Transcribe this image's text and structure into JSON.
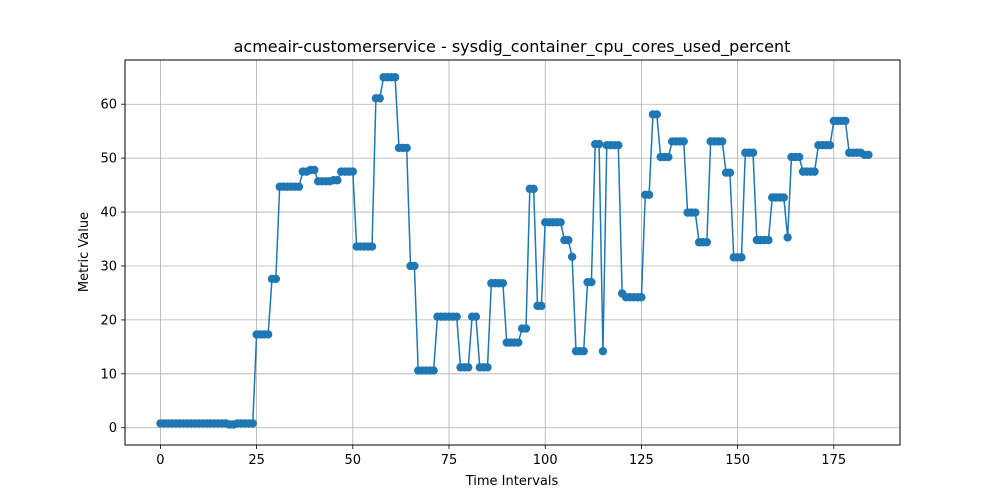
{
  "chart_data": {
    "type": "line",
    "title": "acmeair-customerservice - sysdig_container_cpu_cores_used_percent",
    "xlabel": "Time Intervals",
    "ylabel": "Metric Value",
    "xlim": [
      -9.2,
      192.2
    ],
    "ylim": [
      -3.2,
      68.2
    ],
    "xticks": [
      0,
      25,
      50,
      75,
      100,
      125,
      150,
      175
    ],
    "yticks": [
      0,
      10,
      20,
      30,
      40,
      50,
      60
    ],
    "grid": true,
    "line_color": "#1f77b4",
    "series": [
      {
        "values": [
          0.8,
          0.8,
          0.8,
          0.8,
          0.8,
          0.8,
          0.8,
          0.8,
          0.8,
          0.8,
          0.8,
          0.8,
          0.8,
          0.8,
          0.8,
          0.8,
          0.8,
          0.8,
          0.6,
          0.6,
          0.8,
          0.8,
          0.8,
          0.8,
          0.8,
          17.3,
          17.3,
          17.3,
          17.3,
          27.6,
          27.6,
          44.7,
          44.7,
          44.7,
          44.7,
          44.7,
          44.7,
          47.5,
          47.5,
          47.8,
          47.8,
          45.7,
          45.7,
          45.7,
          45.7,
          45.9,
          45.9,
          47.5,
          47.5,
          47.5,
          47.5,
          33.6,
          33.6,
          33.6,
          33.6,
          33.6,
          61.1,
          61.1,
          65.0,
          65.0,
          65.0,
          65.0,
          51.9,
          51.9,
          51.9,
          30.0,
          30.0,
          10.6,
          10.6,
          10.6,
          10.6,
          10.6,
          20.6,
          20.6,
          20.6,
          20.6,
          20.6,
          20.6,
          11.2,
          11.2,
          11.2,
          20.6,
          20.6,
          11.2,
          11.2,
          11.2,
          26.8,
          26.8,
          26.8,
          26.8,
          15.8,
          15.8,
          15.8,
          15.8,
          18.4,
          18.4,
          44.3,
          44.3,
          22.6,
          22.6,
          38.1,
          38.1,
          38.1,
          38.1,
          38.1,
          34.8,
          34.8,
          31.7,
          14.2,
          14.2,
          14.2,
          27.0,
          27.0,
          52.6,
          52.6,
          14.2,
          52.4,
          52.4,
          52.4,
          52.4,
          24.9,
          24.2,
          24.2,
          24.2,
          24.2,
          24.2,
          43.2,
          43.2,
          58.1,
          58.1,
          50.2,
          50.2,
          50.2,
          53.1,
          53.1,
          53.1,
          53.1,
          39.9,
          39.9,
          39.9,
          34.4,
          34.4,
          34.4,
          53.1,
          53.1,
          53.1,
          53.1,
          47.3,
          47.3,
          31.6,
          31.6,
          31.6,
          51.0,
          51.0,
          51.0,
          34.8,
          34.8,
          34.8,
          34.8,
          42.7,
          42.7,
          42.7,
          42.7,
          35.3,
          50.2,
          50.2,
          50.2,
          47.5,
          47.5,
          47.5,
          47.5,
          52.4,
          52.4,
          52.4,
          52.4,
          56.9,
          56.9,
          56.9,
          56.9,
          51.0,
          51.0,
          51.0,
          51.0,
          50.6,
          50.6
        ]
      }
    ]
  }
}
